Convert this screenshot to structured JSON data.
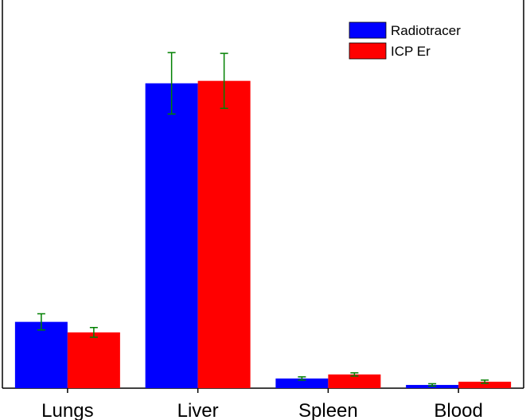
{
  "chart_data": {
    "type": "bar",
    "title": "",
    "xlabel": "",
    "ylabel": "",
    "categories": [
      "Lungs",
      "Liver",
      "Spleen",
      "Blood"
    ],
    "series": [
      {
        "name": "Radiotracer",
        "color": "#0000ff",
        "values": [
          82,
          377,
          12,
          4
        ],
        "errors": [
          10,
          38,
          2,
          1.5
        ]
      },
      {
        "name": "ICP Er",
        "color": "#ff0000",
        "values": [
          69,
          380,
          17,
          8
        ],
        "errors": [
          6,
          34,
          2,
          2
        ]
      }
    ],
    "ylim": [
      0,
      480
    ],
    "error_bar_color": "#008000",
    "grid": false,
    "legend": "top-right"
  }
}
